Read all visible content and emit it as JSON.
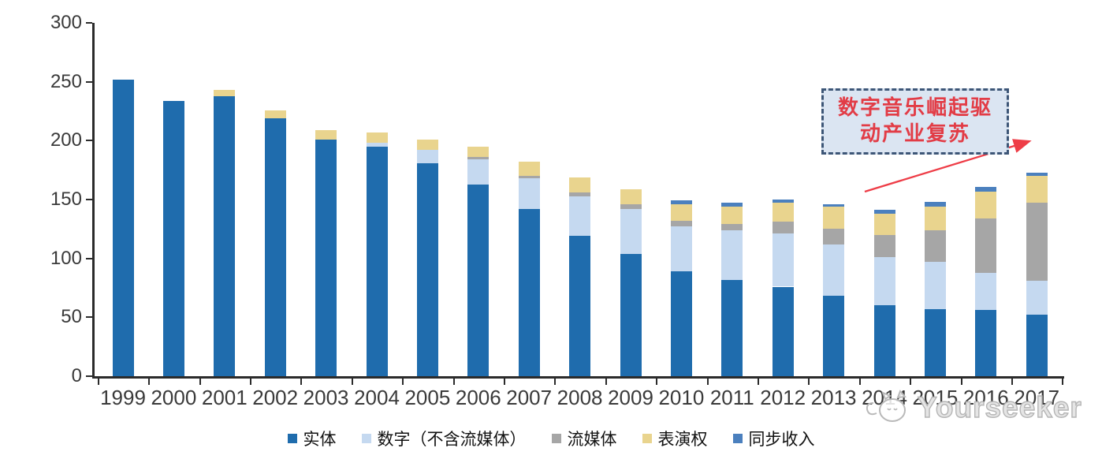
{
  "chart_data": {
    "type": "bar",
    "stacked": true,
    "title": "",
    "xlabel": "",
    "ylabel": "",
    "ylim": [
      0,
      300
    ],
    "yticks": [
      0,
      50,
      100,
      150,
      200,
      250,
      300
    ],
    "grid": false,
    "legend_position": "bottom",
    "categories": [
      "1999",
      "2000",
      "2001",
      "2002",
      "2003",
      "2004",
      "2005",
      "2006",
      "2007",
      "2008",
      "2009",
      "2010",
      "2011",
      "2012",
      "2013",
      "2014",
      "2015",
      "2016",
      "2017"
    ],
    "series": [
      {
        "key": "physical",
        "name": "实体",
        "color": "#1F6CAD",
        "values": [
          252,
          234,
          238,
          219,
          201,
          195,
          181,
          163,
          142,
          119,
          104,
          89,
          82,
          76,
          68,
          60,
          57,
          56,
          52
        ]
      },
      {
        "key": "digital-ex-streaming",
        "name": "数字（不含流媒体）",
        "color": "#C5D9F0",
        "values": [
          0,
          0,
          0,
          0,
          0,
          3,
          11,
          21,
          26,
          34,
          38,
          38,
          42,
          45,
          44,
          41,
          40,
          32,
          29
        ]
      },
      {
        "key": "streaming",
        "name": "流媒体",
        "color": "#A6A6A6",
        "values": [
          0,
          0,
          0,
          0,
          0,
          0,
          0,
          2,
          2,
          3,
          4,
          5,
          5,
          10,
          13,
          19,
          27,
          46,
          66
        ]
      },
      {
        "key": "performance-rights",
        "name": "表演权",
        "color": "#E9D48E",
        "values": [
          0,
          0,
          5,
          7,
          8,
          9,
          9,
          9,
          12,
          13,
          13,
          14,
          15,
          16,
          19,
          18,
          20,
          23,
          23
        ]
      },
      {
        "key": "sync-revenue",
        "name": "同步收入",
        "color": "#4B80BE",
        "values": [
          0,
          0,
          0,
          0,
          0,
          0,
          0,
          0,
          0,
          0,
          0,
          3,
          3,
          3,
          2,
          3,
          4,
          4,
          3
        ]
      }
    ]
  },
  "annotation": {
    "line1": "数字音乐崛起驱",
    "line2": "动产业复苏"
  },
  "watermark": {
    "text": "Yourseeker"
  }
}
